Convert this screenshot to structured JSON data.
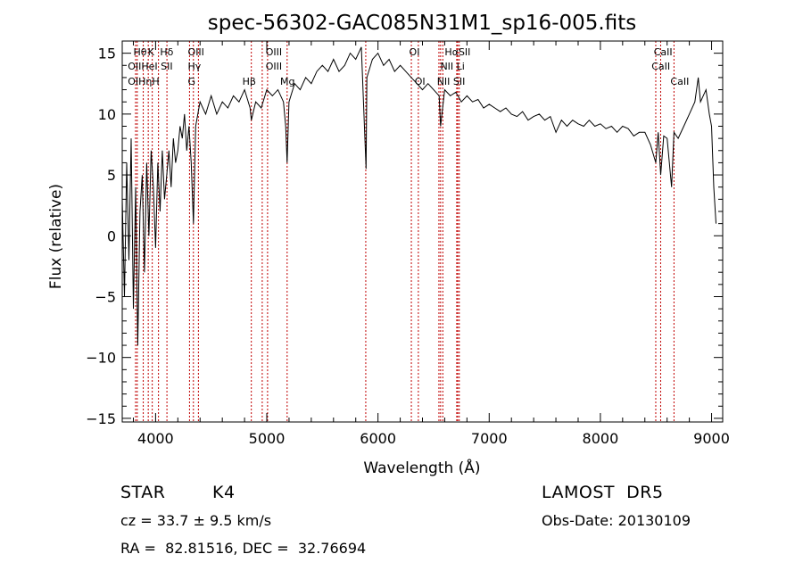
{
  "chart_data": {
    "type": "line",
    "title": "spec-56302-GAC085N31M1_sp16-005.fits",
    "xlabel": "Wavelength (Å)",
    "ylabel": "Flux (relative)",
    "xlim": [
      3700,
      9100
    ],
    "ylim": [
      -15.3,
      16
    ],
    "xticks": [
      4000,
      5000,
      6000,
      7000,
      8000,
      9000
    ],
    "yticks": [
      -15,
      -10,
      -5,
      0,
      5,
      10,
      15
    ],
    "grid": false,
    "legend": "none",
    "series": [
      {
        "values_x": [
          3700,
          3720,
          3740,
          3760,
          3780,
          3800,
          3820,
          3840,
          3860,
          3880,
          3900,
          3920,
          3940,
          3960,
          3980,
          4000,
          4020,
          4040,
          4060,
          4080,
          4100,
          4120,
          4140,
          4160,
          4180,
          4200,
          4220,
          4240,
          4260,
          4280,
          4300,
          4320,
          4340,
          4360,
          4380,
          4400,
          4450,
          4500,
          4550,
          4600,
          4650,
          4700,
          4750,
          4800,
          4850,
          4861,
          4900,
          4950,
          5000,
          5050,
          5100,
          5150,
          5170,
          5183,
          5200,
          5250,
          5300,
          5350,
          5400,
          5450,
          5500,
          5550,
          5600,
          5650,
          5700,
          5750,
          5800,
          5850,
          5893,
          5900,
          5950,
          6000,
          6050,
          6100,
          6150,
          6200,
          6250,
          6300,
          6350,
          6400,
          6450,
          6500,
          6550,
          6563,
          6600,
          6650,
          6700,
          6750,
          6800,
          6850,
          6900,
          6950,
          7000,
          7050,
          7100,
          7150,
          7200,
          7250,
          7300,
          7350,
          7400,
          7450,
          7500,
          7550,
          7600,
          7650,
          7700,
          7750,
          7800,
          7850,
          7900,
          7950,
          8000,
          8050,
          8100,
          8150,
          8200,
          8250,
          8300,
          8350,
          8400,
          8450,
          8498,
          8520,
          8542,
          8570,
          8600,
          8640,
          8662,
          8700,
          8750,
          8800,
          8850,
          8880,
          8900,
          8950,
          8980,
          9000,
          9020,
          9040
        ],
        "values_y": [
          3,
          -5,
          6,
          -2,
          8,
          -6,
          4,
          -9,
          2,
          5,
          -3,
          6,
          0,
          7,
          4,
          -1,
          6,
          2,
          7,
          3,
          5,
          7,
          4,
          8,
          6,
          7,
          9,
          8,
          10,
          7,
          9,
          6,
          1,
          9,
          10,
          11,
          10,
          11.5,
          10,
          11,
          10.5,
          11.5,
          11,
          12,
          10.5,
          9.5,
          11,
          10.5,
          12,
          11.5,
          12,
          11,
          9,
          6,
          11,
          12.5,
          12,
          13,
          12.5,
          13.5,
          14,
          13.5,
          14.5,
          13.5,
          14,
          15,
          14.5,
          15.5,
          5.5,
          13,
          14.5,
          15,
          14,
          14.5,
          13.5,
          14,
          13.5,
          13,
          12.5,
          12,
          12.5,
          12,
          11.5,
          9,
          12,
          11.5,
          11.8,
          11,
          11.5,
          11,
          11.2,
          10.5,
          10.8,
          10.5,
          10.2,
          10.5,
          10,
          9.8,
          10.2,
          9.5,
          9.8,
          10,
          9.5,
          9.8,
          8.5,
          9.5,
          9,
          9.5,
          9.2,
          9,
          9.5,
          9,
          9.2,
          8.8,
          9,
          8.5,
          9,
          8.8,
          8.2,
          8.5,
          8.5,
          7.5,
          6,
          8.5,
          5,
          8.2,
          8,
          4,
          8.5,
          8,
          9,
          10,
          11,
          13,
          11,
          12,
          10,
          9,
          4,
          1
        ]
      }
    ],
    "annotations": {
      "lines": [
        3820,
        3835,
        3889,
        3934,
        3970,
        4026,
        4102,
        4305,
        4340,
        4385,
        4861,
        4959,
        5007,
        5183,
        5890,
        6300,
        6363,
        6548,
        6563,
        6583,
        6708,
        6717,
        6731,
        8498,
        8542,
        8662
      ],
      "labels": [
        {
          "text": "Hθ",
          "x": 3800,
          "row": 0
        },
        {
          "text": "K",
          "x": 3930,
          "row": 0
        },
        {
          "text": "Hδ",
          "x": 4040,
          "row": 0
        },
        {
          "text": "OIII",
          "x": 4290,
          "row": 0
        },
        {
          "text": "OIII",
          "x": 4990,
          "row": 0
        },
        {
          "text": "OI",
          "x": 6280,
          "row": 0
        },
        {
          "text": "HαSII",
          "x": 6600,
          "row": 0
        },
        {
          "text": "CaII",
          "x": 8480,
          "row": 0
        },
        {
          "text": "OIIHeI SII",
          "x": 3750,
          "row": 1
        },
        {
          "text": "Hγ",
          "x": 4290,
          "row": 1
        },
        {
          "text": "OIII",
          "x": 4990,
          "row": 1
        },
        {
          "text": "NII Li",
          "x": 6560,
          "row": 1
        },
        {
          "text": "CaII",
          "x": 8460,
          "row": 1
        },
        {
          "text": "OIHηH",
          "x": 3750,
          "row": 2
        },
        {
          "text": "G",
          "x": 4290,
          "row": 2
        },
        {
          "text": "Hβ",
          "x": 4780,
          "row": 2
        },
        {
          "text": "Mg",
          "x": 5120,
          "row": 2
        },
        {
          "text": "OI",
          "x": 6330,
          "row": 2
        },
        {
          "text": "NII SII",
          "x": 6530,
          "row": 2
        },
        {
          "text": "CaII",
          "x": 8630,
          "row": 2
        }
      ]
    }
  },
  "info": {
    "class": "STAR",
    "subclass": "K4",
    "survey": "LAMOST  DR5",
    "cz": "cz = 33.7 ± 9.5 km/s",
    "obsdate": "Obs-Date: 20130109",
    "coords": "RA =  82.81516, DEC =  32.76694"
  }
}
